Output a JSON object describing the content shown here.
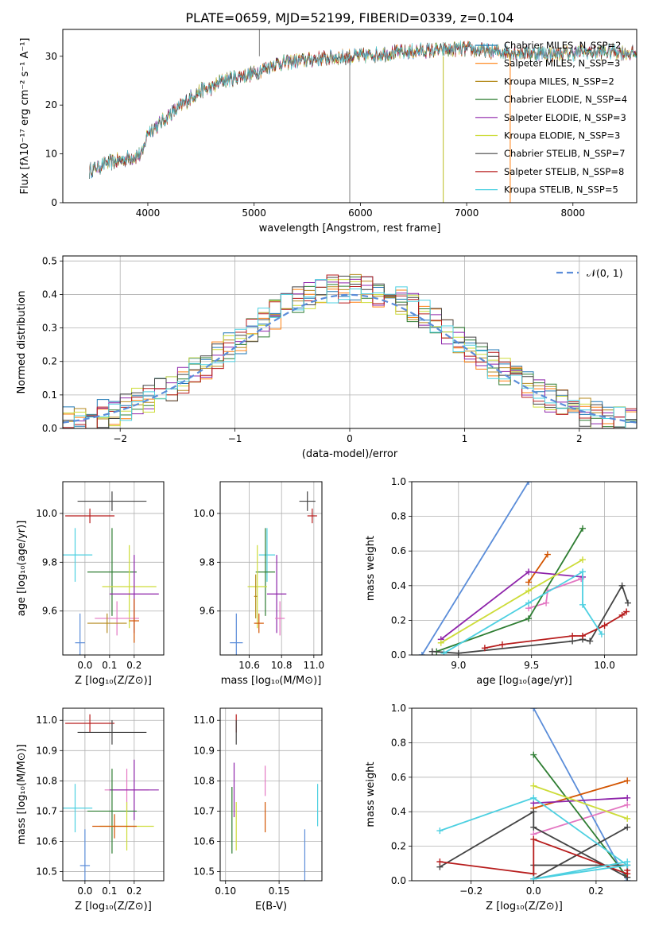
{
  "figure_title": "PLATE=0659, MJD=52199, FIBERID=0339, z=0.104",
  "palette": [
    "#1f77b4",
    "#d62728",
    "#2ca02c",
    "#9467bd",
    "#e377c2",
    "#bcbd22",
    "#17becf",
    "#8c564b",
    "#7f7f7f"
  ],
  "chart_data": [
    {
      "id": "spectrum",
      "type": "line",
      "title": "PLATE=0659, MJD=52199, FIBERID=0339, z=0.104",
      "xlabel": "wavelength [Angstrom, rest frame]",
      "ylabel": "Flux [fλ10⁻¹⁷ erg cm⁻² s⁻¹ A⁻¹]",
      "xlim": [
        3200,
        8600
      ],
      "ylim": [
        0,
        35.5
      ],
      "xticks": [
        4000,
        5000,
        6000,
        7000,
        8000
      ],
      "yticks": [
        0,
        10,
        20,
        30
      ],
      "grid": false,
      "legend_position": "top-right",
      "series": [
        {
          "name": "Chabrier MILES, N_SSP=2",
          "color": "#1f77b4"
        },
        {
          "name": "Salpeter MILES, N_SSP=3",
          "color": "#ff7f0e"
        },
        {
          "name": "Kroupa MILES, N_SSP=2",
          "color": "#b58a1c"
        },
        {
          "name": "Chabrier ELODIE, N_SSP=4",
          "color": "#2e7d32"
        },
        {
          "name": "Salpeter ELODIE, N_SSP=3",
          "color": "#8e24aa"
        },
        {
          "name": "Kroupa ELODIE, N_SSP=3",
          "color": "#cddc39"
        },
        {
          "name": "Chabrier STELIB, N_SSP=7",
          "color": "#444444"
        },
        {
          "name": "Salpeter STELIB, N_SSP=8",
          "color": "#b71c1c"
        },
        {
          "name": "Kroupa STELIB, N_SSP=5",
          "color": "#4dd0e1"
        }
      ],
      "continuum": {
        "x": [
          3450,
          3600,
          3800,
          3950,
          4000,
          4100,
          4200,
          4300,
          4400,
          4500,
          4600,
          4700,
          4800,
          4900,
          5000,
          5100,
          5200,
          5400,
          5600,
          5800,
          6000,
          6200,
          6500,
          6800,
          7000,
          7200,
          7500,
          7800,
          8100,
          8400,
          8600
        ],
        "y": [
          6.5,
          8.0,
          9.0,
          10.0,
          14.5,
          16.0,
          18.0,
          19.5,
          21.5,
          23.0,
          23.5,
          25.0,
          25.5,
          26.0,
          26.5,
          27.5,
          28.5,
          29.0,
          29.5,
          29.8,
          30.0,
          30.5,
          31.0,
          31.3,
          31.5,
          31.0,
          30.8,
          30.5,
          30.8,
          31.0,
          30.5
        ]
      },
      "spikes": [
        {
          "x": 5050,
          "y": 35.5,
          "color": "#7f7f7f"
        },
        {
          "x": 6780,
          "y": 0,
          "color": "#bcbd22"
        },
        {
          "x": 7410,
          "y": 0,
          "color": "#ff7f0e"
        },
        {
          "x": 5900,
          "y": 0,
          "color": "#7f7f7f"
        }
      ]
    },
    {
      "id": "residuals",
      "type": "line",
      "xlabel": "(data-model)/error",
      "ylabel": "Normed distribution",
      "xlim": [
        -2.5,
        2.5
      ],
      "ylim": [
        0,
        0.515
      ],
      "xticks": [
        -2,
        -1,
        0,
        1,
        2
      ],
      "yticks": [
        0.0,
        0.1,
        0.2,
        0.3,
        0.4,
        0.5
      ],
      "grid": true,
      "legend_position": "top-right",
      "normal_curve": {
        "name": "𝒩(0, 1)",
        "mean": 0,
        "sigma": 1,
        "color": "#5b8dd9"
      },
      "histogram_bin_width": 0.1
    },
    {
      "id": "age_vs_Z",
      "type": "scatter",
      "xlabel": "Z [log₁₀(Z/Z⊙)]",
      "ylabel": "age  [log₁₀(age/yr)]",
      "xlim": [
        -0.09,
        0.32
      ],
      "ylim": [
        9.42,
        10.13
      ],
      "xticks": [
        0.0,
        0.1,
        0.2
      ],
      "yticks": [
        9.6,
        9.8,
        10.0
      ],
      "grid": true,
      "points": [
        {
          "x": 0.11,
          "y": 10.05,
          "xerr": 0.14,
          "yerr": 0.04,
          "color": "#444444"
        },
        {
          "x": 0.02,
          "y": 9.99,
          "xerr": 0.1,
          "yerr": 0.03,
          "color": "#b71c1c"
        },
        {
          "x": -0.04,
          "y": 9.83,
          "xerr": 0.07,
          "yerr": 0.11,
          "color": "#4dd0e1"
        },
        {
          "x": 0.11,
          "y": 9.76,
          "xerr": 0.1,
          "yerr": 0.18,
          "color": "#2e7d32"
        },
        {
          "x": 0.18,
          "y": 9.7,
          "xerr": 0.11,
          "yerr": 0.17,
          "color": "#cddc39"
        },
        {
          "x": 0.2,
          "y": 9.67,
          "xerr": 0.1,
          "yerr": 0.16,
          "color": "#8e24aa"
        },
        {
          "x": 0.13,
          "y": 9.57,
          "xerr": 0.09,
          "yerr": 0.07,
          "color": "#e377c2"
        },
        {
          "x": 0.2,
          "y": 9.56,
          "xerr": 0.02,
          "yerr": 0.09,
          "color": "#d35400"
        },
        {
          "x": 0.09,
          "y": 9.55,
          "xerr": 0.08,
          "yerr": 0.04,
          "color": "#b58a1c"
        },
        {
          "x": -0.02,
          "y": 9.47,
          "xerr": 0.02,
          "yerr": 0.12,
          "color": "#5b8dd9"
        }
      ]
    },
    {
      "id": "age_vs_mass",
      "type": "scatter",
      "xlabel": "mass [log₁₀(M/M⊙)]",
      "ylabel": "",
      "xlim": [
        10.42,
        11.05
      ],
      "ylim": [
        9.42,
        10.13
      ],
      "xticks": [
        10.6,
        10.8,
        11.0
      ],
      "yticks": [
        9.6,
        9.8,
        10.0
      ],
      "grid": true,
      "points": [
        {
          "x": 10.96,
          "y": 10.05,
          "xerr": 0.05,
          "yerr": 0.04,
          "color": "#444444"
        },
        {
          "x": 10.99,
          "y": 9.99,
          "xerr": 0.03,
          "yerr": 0.03,
          "color": "#b71c1c"
        },
        {
          "x": 10.71,
          "y": 9.83,
          "xerr": 0.05,
          "yerr": 0.11,
          "color": "#4dd0e1"
        },
        {
          "x": 10.7,
          "y": 9.76,
          "xerr": 0.06,
          "yerr": 0.18,
          "color": "#2e7d32"
        },
        {
          "x": 10.65,
          "y": 9.7,
          "xerr": 0.06,
          "yerr": 0.17,
          "color": "#cddc39"
        },
        {
          "x": 10.77,
          "y": 9.67,
          "xerr": 0.06,
          "yerr": 0.16,
          "color": "#8e24aa"
        },
        {
          "x": 10.79,
          "y": 9.57,
          "xerr": 0.03,
          "yerr": 0.07,
          "color": "#e377c2"
        },
        {
          "x": 10.66,
          "y": 9.55,
          "xerr": 0.03,
          "yerr": 0.04,
          "color": "#d35400"
        },
        {
          "x": 10.64,
          "y": 9.66,
          "xerr": 0.01,
          "yerr": 0.09,
          "color": "#b58a1c"
        },
        {
          "x": 10.52,
          "y": 9.47,
          "xerr": 0.04,
          "yerr": 0.12,
          "color": "#5b8dd9"
        }
      ]
    },
    {
      "id": "mass_weight_vs_age",
      "type": "line",
      "xlabel": "age  [log₁₀(age/yr)]",
      "ylabel": "mass weight",
      "xlim": [
        8.68,
        10.22
      ],
      "ylim": [
        0,
        1.0
      ],
      "xticks": [
        9.0,
        9.5,
        10.0
      ],
      "yticks": [
        0.0,
        0.2,
        0.4,
        0.6,
        0.8,
        1.0
      ],
      "grid": true,
      "series": [
        {
          "color": "#5b8dd9",
          "x": [
            8.75,
            9.48
          ],
          "y": [
            0.0,
            1.0
          ]
        },
        {
          "color": "#d35400",
          "x": [
            9.48,
            9.61
          ],
          "y": [
            0.42,
            0.58
          ]
        },
        {
          "color": "#e377c2",
          "x": [
            9.48,
            9.6,
            9.61,
            9.84
          ],
          "y": [
            0.27,
            0.3,
            0.37,
            0.44
          ]
        },
        {
          "color": "#2e7d32",
          "x": [
            8.85,
            9.48,
            9.85
          ],
          "y": [
            0.02,
            0.21,
            0.73
          ]
        },
        {
          "color": "#8e24aa",
          "x": [
            8.88,
            9.48,
            9.85
          ],
          "y": [
            0.09,
            0.48,
            0.45
          ]
        },
        {
          "color": "#cddc39",
          "x": [
            8.88,
            9.48,
            9.85
          ],
          "y": [
            0.07,
            0.37,
            0.55
          ]
        },
        {
          "color": "#444444",
          "x": [
            8.82,
            9.0,
            9.78,
            9.85,
            9.9,
            10.12,
            10.16
          ],
          "y": [
            0.02,
            0.01,
            0.08,
            0.09,
            0.08,
            0.4,
            0.3
          ]
        },
        {
          "color": "#b71c1c",
          "x": [
            9.18,
            9.3,
            9.78,
            9.85,
            10.0,
            10.12,
            10.15
          ],
          "y": [
            0.04,
            0.06,
            0.11,
            0.11,
            0.17,
            0.23,
            0.25
          ]
        },
        {
          "color": "#4dd0e1",
          "x": [
            8.9,
            9.48,
            9.85,
            9.85,
            9.98
          ],
          "y": [
            0.01,
            0.3,
            0.48,
            0.29,
            0.12
          ]
        }
      ]
    },
    {
      "id": "mass_vs_Z",
      "type": "scatter",
      "xlabel": "Z [log₁₀(Z/Z⊙)]",
      "ylabel": "mass [log₁₀(M/M⊙)]",
      "xlim": [
        -0.09,
        0.32
      ],
      "ylim": [
        10.47,
        11.04
      ],
      "xticks": [
        0.0,
        0.1,
        0.2
      ],
      "yticks": [
        10.5,
        10.6,
        10.7,
        10.8,
        10.9,
        11.0
      ],
      "grid": true,
      "points": [
        {
          "x": 0.02,
          "y": 10.99,
          "xerr": 0.1,
          "yerr": 0.03,
          "color": "#b71c1c"
        },
        {
          "x": 0.11,
          "y": 10.96,
          "xerr": 0.14,
          "yerr": 0.04,
          "color": "#444444"
        },
        {
          "x": 0.17,
          "y": 10.77,
          "xerr": 0.09,
          "yerr": 0.07,
          "color": "#e377c2"
        },
        {
          "x": 0.2,
          "y": 10.77,
          "xerr": 0.1,
          "yerr": 0.1,
          "color": "#8e24aa"
        },
        {
          "x": -0.04,
          "y": 10.71,
          "xerr": 0.07,
          "yerr": 0.08,
          "color": "#4dd0e1"
        },
        {
          "x": 0.11,
          "y": 10.7,
          "xerr": 0.1,
          "yerr": 0.14,
          "color": "#2e7d32"
        },
        {
          "x": 0.17,
          "y": 10.65,
          "xerr": 0.11,
          "yerr": 0.08,
          "color": "#cddc39"
        },
        {
          "x": 0.12,
          "y": 10.65,
          "xerr": 0.09,
          "yerr": 0.04,
          "color": "#d35400"
        },
        {
          "x": 0.0,
          "y": 10.52,
          "xerr": 0.02,
          "yerr": 0.12,
          "color": "#5b8dd9"
        }
      ]
    },
    {
      "id": "mass_vs_ebv",
      "type": "scatter",
      "xlabel": "E(B-V)",
      "ylabel": "",
      "xlim": [
        0.095,
        0.19
      ],
      "ylim": [
        10.47,
        11.04
      ],
      "xticks": [
        0.1,
        0.15
      ],
      "yticks": [
        10.5,
        10.6,
        10.7,
        10.8,
        10.9,
        11.0
      ],
      "grid": true,
      "points": [
        {
          "x": 0.11,
          "y": 10.99,
          "yerr": 0.03,
          "color": "#b71c1c"
        },
        {
          "x": 0.11,
          "y": 10.96,
          "yerr": 0.04,
          "color": "#444444"
        },
        {
          "x": 0.108,
          "y": 10.77,
          "yerr": 0.09,
          "color": "#8e24aa"
        },
        {
          "x": 0.137,
          "y": 10.8,
          "yerr": 0.05,
          "color": "#e377c2"
        },
        {
          "x": 0.106,
          "y": 10.67,
          "yerr": 0.11,
          "color": "#2e7d32"
        },
        {
          "x": 0.11,
          "y": 10.65,
          "yerr": 0.08,
          "color": "#cddc39"
        },
        {
          "x": 0.137,
          "y": 10.68,
          "yerr": 0.05,
          "color": "#d35400"
        },
        {
          "x": 0.174,
          "y": 10.54,
          "yerr": 0.1,
          "color": "#5b8dd9"
        },
        {
          "x": 0.186,
          "y": 10.72,
          "yerr": 0.07,
          "color": "#4dd0e1"
        }
      ]
    },
    {
      "id": "mass_weight_vs_Z",
      "type": "line",
      "xlabel": "Z [log₁₀(Z/Z⊙)]",
      "ylabel": "mass weight",
      "xlim": [
        -0.39,
        0.33
      ],
      "ylim": [
        0,
        1.0
      ],
      "xticks": [
        -0.2,
        0.0,
        0.2
      ],
      "yticks": [
        0.0,
        0.2,
        0.4,
        0.6,
        0.8,
        1.0
      ],
      "grid": true,
      "series": [
        {
          "color": "#5b8dd9",
          "x": [
            0.0,
            0.3
          ],
          "y": [
            1.0,
            0.0
          ]
        },
        {
          "color": "#d35400",
          "x": [
            0.0,
            0.3
          ],
          "y": [
            0.42,
            0.58
          ]
        },
        {
          "color": "#e377c2",
          "x": [
            0.0,
            0.3
          ],
          "y": [
            0.27,
            0.44
          ]
        },
        {
          "color": "#2e7d32",
          "x": [
            0.0,
            0.3
          ],
          "y": [
            0.73,
            0.02
          ]
        },
        {
          "color": "#8e24aa",
          "x": [
            0.0,
            0.3
          ],
          "y": [
            0.45,
            0.48
          ]
        },
        {
          "color": "#cddc39",
          "x": [
            0.0,
            0.3
          ],
          "y": [
            0.55,
            0.36
          ]
        },
        {
          "color": "#444444",
          "x": [
            -0.3,
            0.0,
            0.0,
            0.3,
            0.3,
            0.0,
            0.0,
            0.3
          ],
          "y": [
            0.08,
            0.4,
            0.31,
            0.02,
            0.09,
            0.09,
            0.01,
            0.31
          ]
        },
        {
          "color": "#b71c1c",
          "x": [
            -0.3,
            0.0,
            0.0,
            0.3,
            0.3
          ],
          "y": [
            0.11,
            0.04,
            0.24,
            0.04,
            0.06
          ]
        },
        {
          "color": "#4dd0e1",
          "x": [
            -0.3,
            0.0,
            0.3,
            0.0,
            0.3
          ],
          "y": [
            0.29,
            0.48,
            0.09,
            0.01,
            0.11
          ]
        }
      ]
    }
  ]
}
